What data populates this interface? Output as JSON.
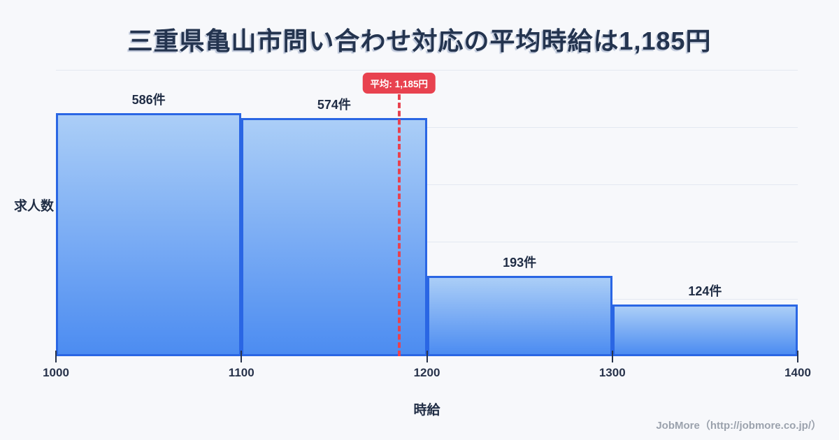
{
  "title": "三重県亀山市問い合わせ対応の平均時給は1,185円",
  "chart_data": {
    "type": "bar",
    "subtype": "histogram",
    "title": "三重県亀山市問い合わせ対応の平均時給は1,185円",
    "categories": [
      "1000-1100",
      "1100-1200",
      "1200-1300",
      "1300-1400"
    ],
    "values": [
      586,
      574,
      193,
      124
    ],
    "bar_labels": [
      "586件",
      "574件",
      "193件",
      "124件"
    ],
    "x_ticks": [
      "1000",
      "1100",
      "1200",
      "1300",
      "1400"
    ],
    "xlabel": "時給",
    "ylabel": "求人数",
    "xlim": [
      1000,
      1400
    ],
    "ylim": [
      0,
      690
    ],
    "grid": true,
    "gridline_count": 5,
    "average": {
      "value": 1185,
      "label": "平均: 1,185円"
    },
    "legend": "none"
  },
  "footer": {
    "credit": "JobMore（http://jobmore.co.jp/）"
  },
  "colors": {
    "background": "#f7f8fb",
    "title": "#24344f",
    "bar_fill_top": "#abcef7",
    "bar_fill_bottom": "#4c8cf1",
    "bar_border": "#2a66e4",
    "grid": "#e3e8f1",
    "average_red": "#e8424f",
    "label_dark": "#1f2c44",
    "tick_dark": "#28334b",
    "footer_gray": "#9ba2ad"
  }
}
